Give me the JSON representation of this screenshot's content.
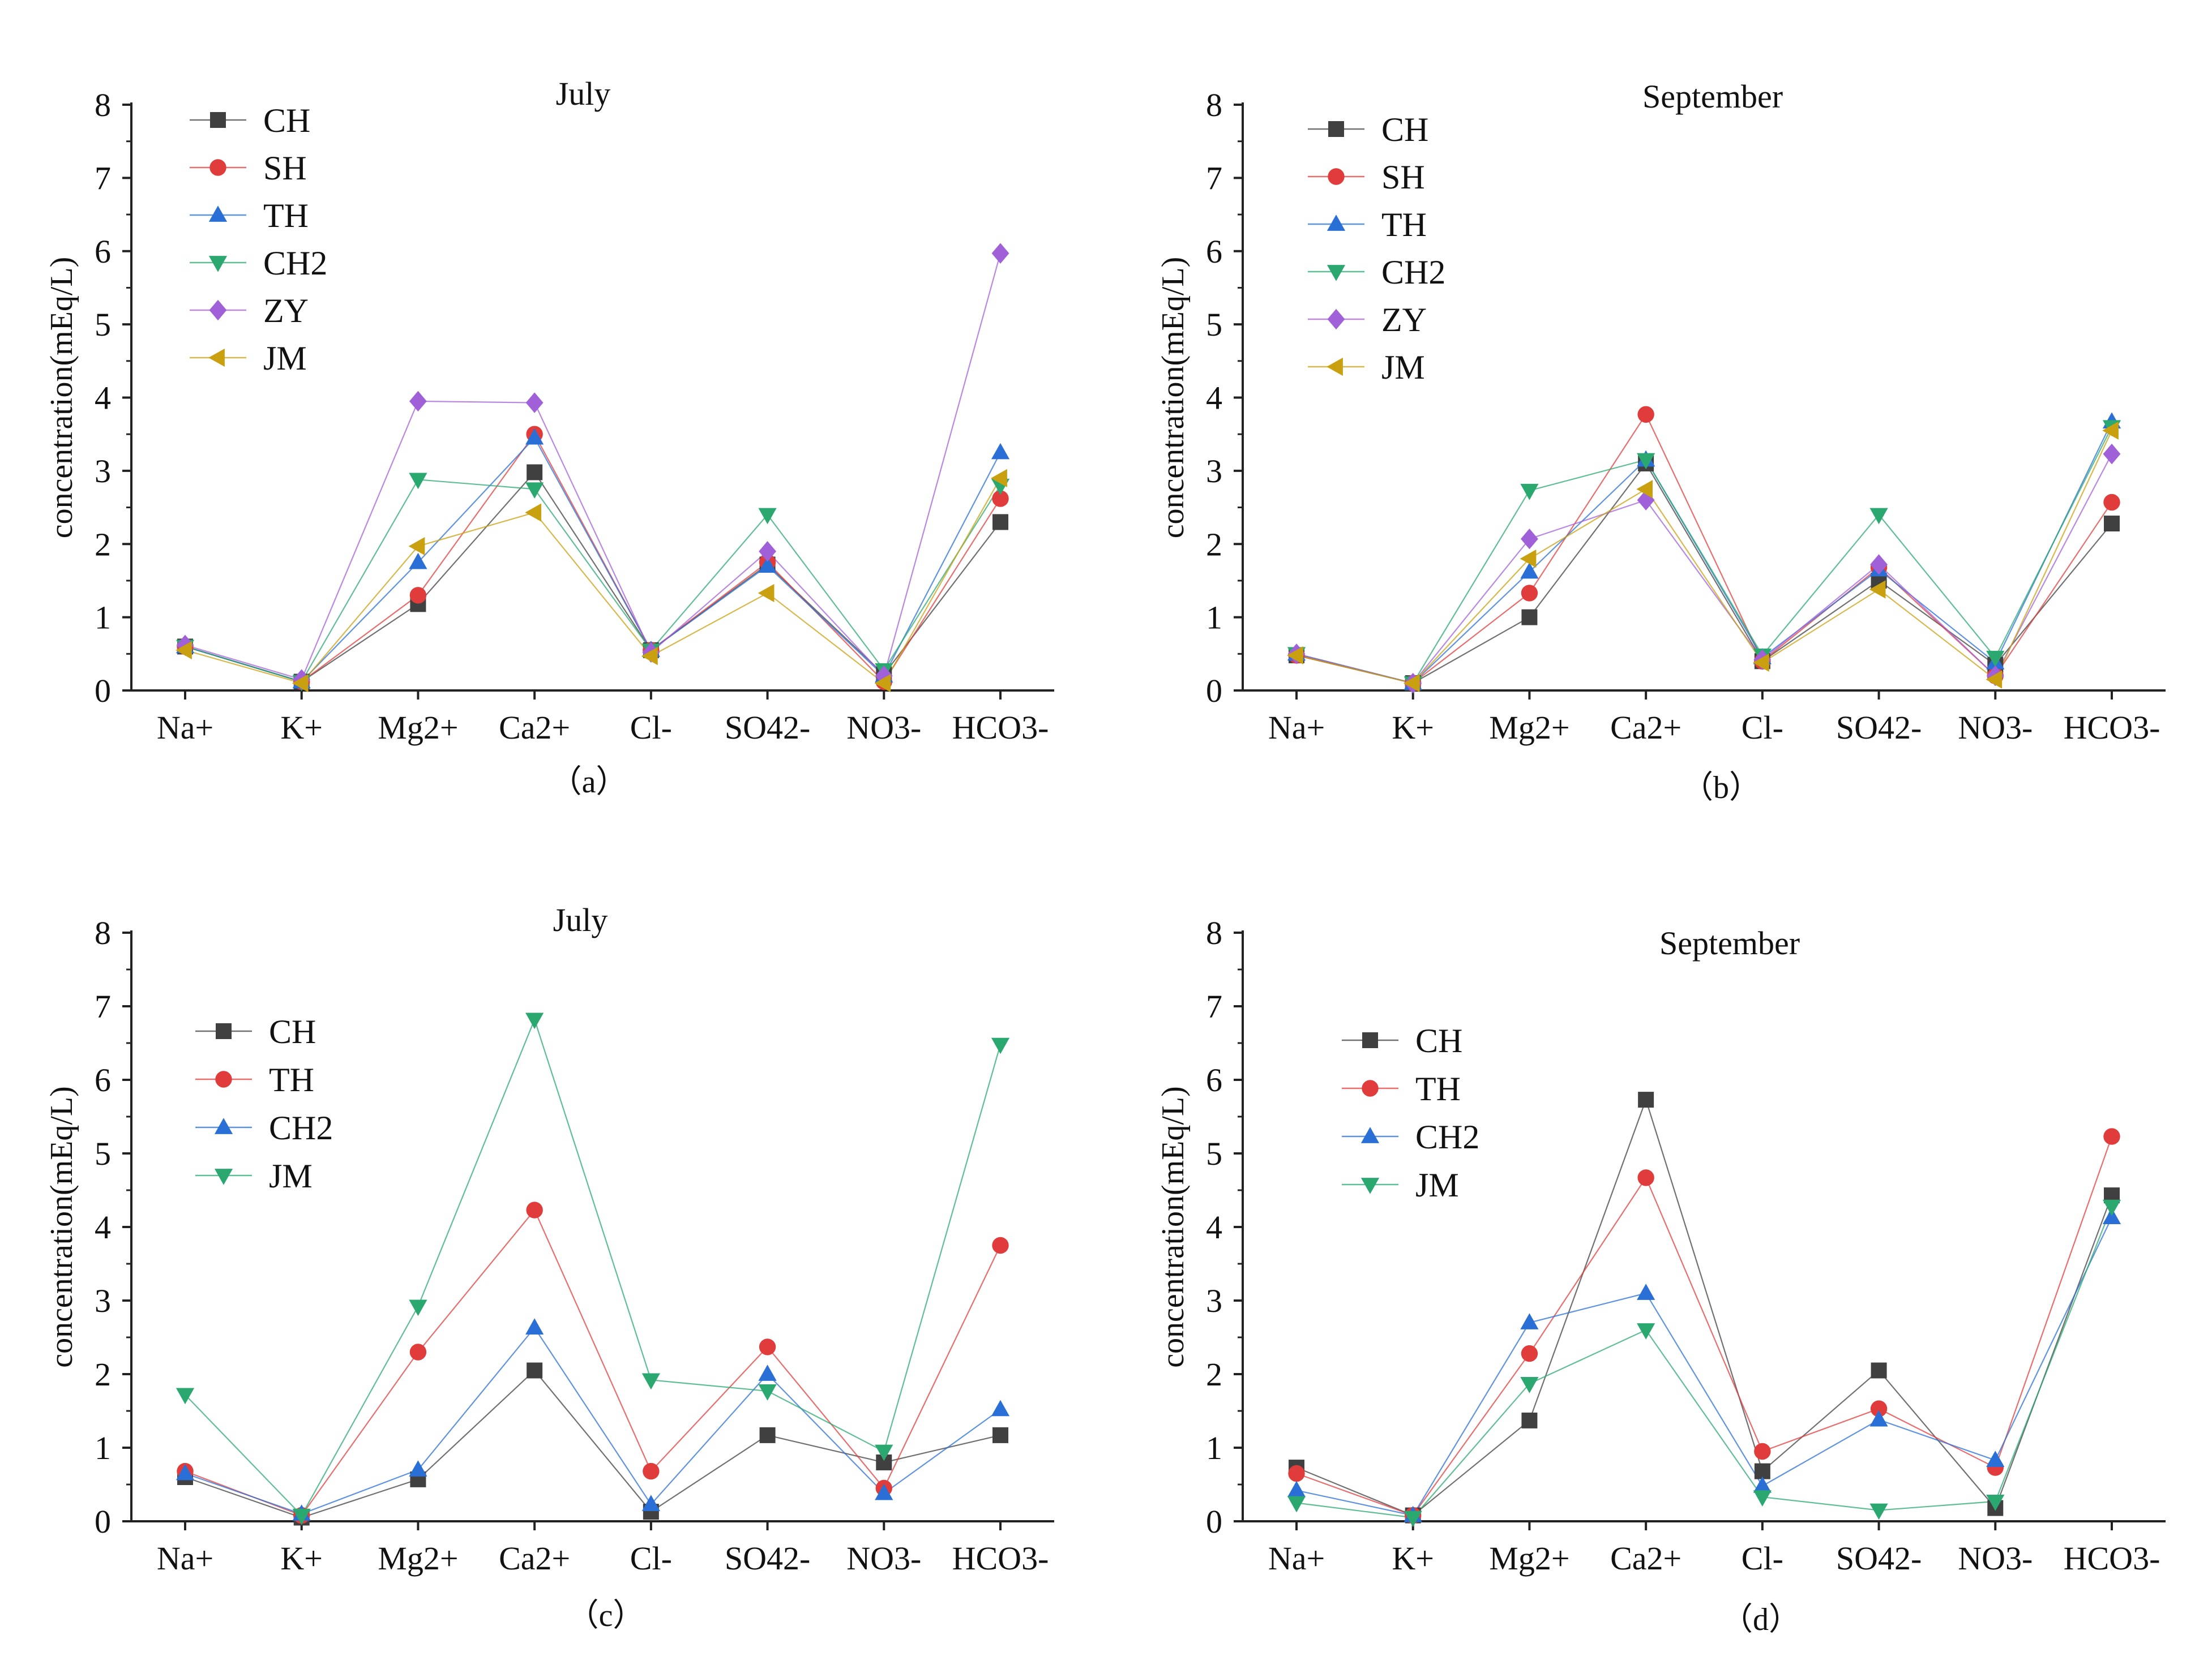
{
  "chart_data": [
    {
      "type": "line",
      "panel_label": "（a）",
      "title": "July",
      "ylabel": "concentration(mEq/L)",
      "ylim": [
        0,
        8
      ],
      "yticks": [
        "0",
        "1",
        "2",
        "3",
        "4",
        "5",
        "6",
        "7",
        "8"
      ],
      "categories": [
        "Na+",
        "K+",
        "Mg2+",
        "Ca2+",
        "Cl-",
        "SO42-",
        "NO3-",
        "HCO3-"
      ],
      "legend_position": "top-left",
      "series": [
        {
          "name": "CH",
          "color": "#404040",
          "marker": "square",
          "values": [
            0.6,
            0.12,
            1.18,
            2.98,
            0.55,
            1.72,
            0.22,
            2.3
          ]
        },
        {
          "name": "SH",
          "color": "#e03c3c",
          "marker": "circle",
          "values": [
            0.6,
            0.12,
            1.3,
            3.5,
            0.55,
            1.75,
            0.12,
            2.62
          ]
        },
        {
          "name": "TH",
          "color": "#2a6fd6",
          "marker": "triangle-up",
          "values": [
            0.6,
            0.12,
            1.75,
            3.45,
            0.55,
            1.7,
            0.2,
            3.25
          ]
        },
        {
          "name": "CH2",
          "color": "#2aa870",
          "marker": "triangle-down",
          "values": [
            0.6,
            0.12,
            2.88,
            2.75,
            0.55,
            2.4,
            0.28,
            2.8
          ]
        },
        {
          "name": "ZY",
          "color": "#a060d8",
          "marker": "diamond",
          "values": [
            0.62,
            0.15,
            3.95,
            3.93,
            0.52,
            1.9,
            0.2,
            5.97
          ]
        },
        {
          "name": "JM",
          "color": "#c8a010",
          "marker": "triangle-left",
          "values": [
            0.55,
            0.1,
            1.97,
            2.43,
            0.47,
            1.33,
            0.1,
            2.9
          ]
        }
      ]
    },
    {
      "type": "line",
      "panel_label": "（b）",
      "title": "September",
      "ylabel": "concentration(mEq/L)",
      "ylim": [
        0,
        8
      ],
      "yticks": [
        "0",
        "1",
        "2",
        "3",
        "4",
        "5",
        "6",
        "7",
        "8"
      ],
      "categories": [
        "Na+",
        "K+",
        "Mg2+",
        "Ca2+",
        "Cl-",
        "SO42-",
        "NO3-",
        "HCO3-"
      ],
      "legend_position": "top-left",
      "series": [
        {
          "name": "CH",
          "color": "#404040",
          "marker": "square",
          "values": [
            0.48,
            0.1,
            1.0,
            3.1,
            0.4,
            1.5,
            0.35,
            2.28
          ]
        },
        {
          "name": "SH",
          "color": "#e03c3c",
          "marker": "circle",
          "values": [
            0.48,
            0.1,
            1.33,
            3.77,
            0.4,
            1.68,
            0.2,
            2.57
          ]
        },
        {
          "name": "TH",
          "color": "#2a6fd6",
          "marker": "triangle-up",
          "values": [
            0.5,
            0.1,
            1.62,
            3.15,
            0.45,
            1.65,
            0.38,
            3.67
          ]
        },
        {
          "name": "CH2",
          "color": "#2aa870",
          "marker": "triangle-down",
          "values": [
            0.5,
            0.1,
            2.73,
            3.15,
            0.48,
            2.4,
            0.45,
            3.6
          ]
        },
        {
          "name": "ZY",
          "color": "#a060d8",
          "marker": "diamond",
          "values": [
            0.5,
            0.1,
            2.07,
            2.6,
            0.42,
            1.72,
            0.2,
            3.23
          ]
        },
        {
          "name": "JM",
          "color": "#c8a010",
          "marker": "triangle-left",
          "values": [
            0.48,
            0.1,
            1.8,
            2.75,
            0.38,
            1.38,
            0.15,
            3.55
          ]
        }
      ]
    },
    {
      "type": "line",
      "panel_label": "（c）",
      "title": "July",
      "ylabel": "concentration(mEq/L)",
      "ylim": [
        0,
        8
      ],
      "yticks": [
        "0",
        "1",
        "2",
        "3",
        "4",
        "5",
        "6",
        "7",
        "8"
      ],
      "categories": [
        "Na+",
        "K+",
        "Mg2+",
        "Ca2+",
        "Cl-",
        "SO42-",
        "NO3-",
        "HCO3-"
      ],
      "legend_position": "top-left",
      "series": [
        {
          "name": "CH",
          "color": "#404040",
          "marker": "square",
          "values": [
            0.6,
            0.05,
            0.57,
            2.05,
            0.13,
            1.17,
            0.8,
            1.17
          ]
        },
        {
          "name": "TH",
          "color": "#e03c3c",
          "marker": "circle",
          "values": [
            0.68,
            0.08,
            2.3,
            4.23,
            0.68,
            2.37,
            0.45,
            3.75
          ]
        },
        {
          "name": "CH2",
          "color": "#2a6fd6",
          "marker": "triangle-up",
          "values": [
            0.65,
            0.1,
            0.7,
            2.63,
            0.23,
            2.0,
            0.38,
            1.52
          ]
        },
        {
          "name": "JM",
          "color": "#2aa870",
          "marker": "triangle-down",
          "values": [
            1.72,
            0.08,
            2.92,
            6.82,
            1.92,
            1.77,
            0.95,
            6.48
          ]
        }
      ]
    },
    {
      "type": "line",
      "panel_label": "（d）",
      "title": "September",
      "ylabel": "concentration(mEq/L)",
      "ylim": [
        0,
        8
      ],
      "yticks": [
        "0",
        "1",
        "2",
        "3",
        "4",
        "5",
        "6",
        "7",
        "8"
      ],
      "categories": [
        "Na+",
        "K+",
        "Mg2+",
        "Ca2+",
        "Cl-",
        "SO42-",
        "NO3-",
        "HCO3-"
      ],
      "legend_position": "top-left",
      "series": [
        {
          "name": "CH",
          "color": "#404040",
          "marker": "square",
          "values": [
            0.73,
            0.08,
            1.37,
            5.73,
            0.68,
            2.05,
            0.18,
            4.43
          ]
        },
        {
          "name": "TH",
          "color": "#e03c3c",
          "marker": "circle",
          "values": [
            0.65,
            0.08,
            2.28,
            4.67,
            0.95,
            1.53,
            0.73,
            5.23
          ]
        },
        {
          "name": "CH2",
          "color": "#2a6fd6",
          "marker": "triangle-up",
          "values": [
            0.42,
            0.08,
            2.7,
            3.1,
            0.48,
            1.38,
            0.83,
            4.13
          ]
        },
        {
          "name": "JM",
          "color": "#2aa870",
          "marker": "triangle-down",
          "values": [
            0.25,
            0.05,
            1.87,
            2.6,
            0.33,
            0.15,
            0.27,
            4.28
          ]
        }
      ]
    }
  ]
}
